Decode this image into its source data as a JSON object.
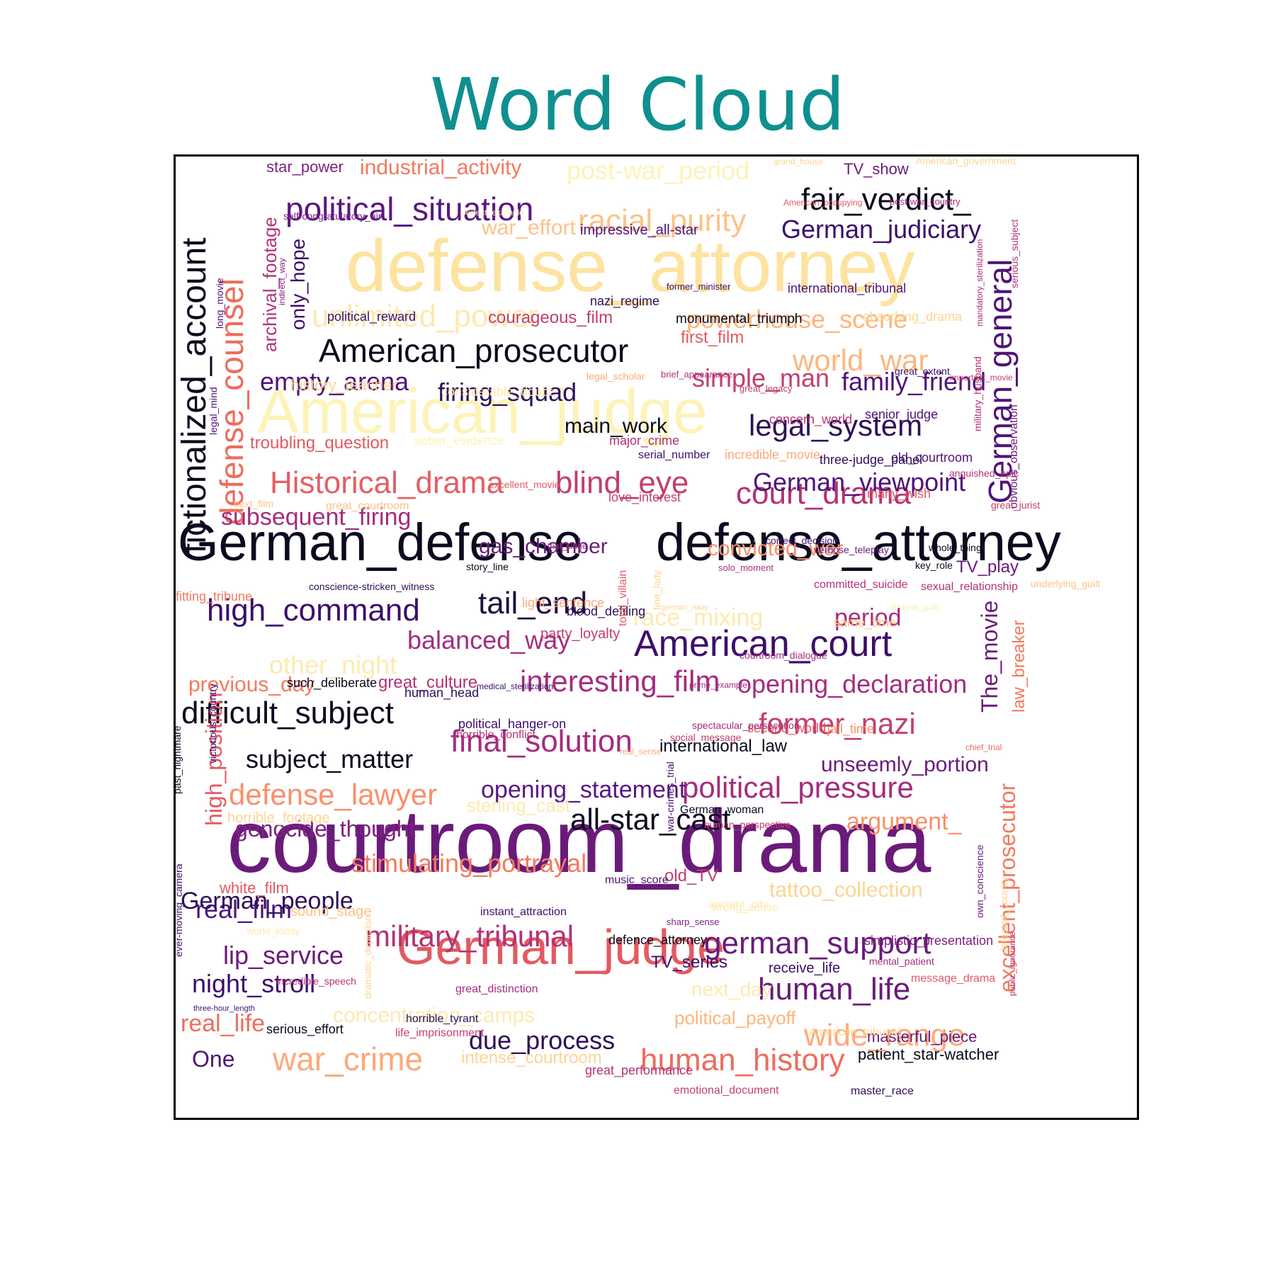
{
  "title": "Word Cloud",
  "chart_data": {
    "type": "wordcloud",
    "title": "Word Cloud",
    "colormap": "magma",
    "background": "#ffffff",
    "border": true,
    "words": [
      {
        "text": "courtroom_drama",
        "color": "#6a1b7a"
      },
      {
        "text": "defense_attorney",
        "color": "#fde3a0"
      },
      {
        "text": "American_judge",
        "color": "#fdf3b8"
      },
      {
        "text": "German_defense",
        "color": "#0b0a1e"
      },
      {
        "text": "defense_attorney",
        "color": "#0b0a1e"
      },
      {
        "text": "German_judge",
        "color": "#e35a61"
      },
      {
        "text": "fictionalized_account",
        "color": "#0b0a1e"
      },
      {
        "text": "defense_counsel",
        "color": "#ee6c5c"
      },
      {
        "text": "German_general",
        "color": "#4e1479"
      },
      {
        "text": "American_prosecutor",
        "color": "#0b0a1e"
      },
      {
        "text": "political_situation",
        "color": "#5a1781"
      },
      {
        "text": "fair_verdict_",
        "color": "#0b0a1e"
      },
      {
        "text": "racial_purity",
        "color": "#fdc287"
      },
      {
        "text": "unlimited_power",
        "color": "#fdeab0"
      },
      {
        "text": "Historical_drama",
        "color": "#e65e64"
      },
      {
        "text": "blind_eye",
        "color": "#c33e6f"
      },
      {
        "text": "court_drama",
        "color": "#b33274"
      },
      {
        "text": "American_court",
        "color": "#3c0f6b"
      },
      {
        "text": "high_command",
        "color": "#3c0f6b"
      },
      {
        "text": "tail_end",
        "color": "#1c1140"
      },
      {
        "text": "interesting_film",
        "color": "#a42c7f"
      },
      {
        "text": "difficult_subject",
        "color": "#0b0a1e"
      },
      {
        "text": "final_solution",
        "color": "#a42c7f"
      },
      {
        "text": "former_nazi",
        "color": "#c33e6f"
      },
      {
        "text": "political_pressure",
        "color": "#a42c7f"
      },
      {
        "text": "defense_lawyer",
        "color": "#fa8f6a"
      },
      {
        "text": "all-star_cast",
        "color": "#0b0a1e"
      },
      {
        "text": "military_tribunal",
        "color": "#b33274"
      },
      {
        "text": "german_support",
        "color": "#6a1b7a"
      },
      {
        "text": "human_life",
        "color": "#6a1b7a"
      },
      {
        "text": "wide_range",
        "color": "#fca97a"
      },
      {
        "text": "war_crime",
        "color": "#fca97a"
      },
      {
        "text": "human_history",
        "color": "#ee6c5c"
      },
      {
        "text": "legal_system",
        "color": "#2e1158"
      },
      {
        "text": "world_war",
        "color": "#fdb57d"
      },
      {
        "text": "powerhouse_scene",
        "color": "#fdb57d"
      },
      {
        "text": "German_judiciary",
        "color": "#3c0f6b"
      },
      {
        "text": "German_viewpoint",
        "color": "#4e1479"
      },
      {
        "text": "empty_arena",
        "color": "#4e1479"
      },
      {
        "text": "firing_squad",
        "color": "#2e1158"
      },
      {
        "text": "simple_man",
        "color": "#c33e6f"
      },
      {
        "text": "family_friend",
        "color": "#4e1479"
      },
      {
        "text": "subsequent_firing",
        "color": "#a42c7f"
      },
      {
        "text": "gas_chamber",
        "color": "#6a1b7a"
      },
      {
        "text": "convicted_war",
        "color": "#fa8f6a"
      },
      {
        "text": "opening_declaration",
        "color": "#a42c7f"
      },
      {
        "text": "opening_statement",
        "color": "#5a1781"
      },
      {
        "text": "unseemly_portion",
        "color": "#6a1b7a"
      },
      {
        "text": "subject_matter",
        "color": "#0b0a1e"
      },
      {
        "text": "genocide_thought",
        "color": "#7d2280"
      },
      {
        "text": "argument_",
        "color": "#fa8f6a"
      },
      {
        "text": "balanced_way",
        "color": "#a42c7f"
      },
      {
        "text": "stimulating_portrayal",
        "color": "#f27a5e"
      },
      {
        "text": "due_process",
        "color": "#2e1158"
      },
      {
        "text": "real_film",
        "color": "#4e1479"
      },
      {
        "text": "lip_service",
        "color": "#6a1b7a"
      },
      {
        "text": "night_stroll",
        "color": "#3c0f6b"
      },
      {
        "text": "German_people",
        "color": "#2e1158"
      },
      {
        "text": "real_life",
        "color": "#ee6c5c"
      },
      {
        "text": "One",
        "color": "#4e1479"
      },
      {
        "text": "period",
        "color": "#a42c7f"
      },
      {
        "text": "race_mixing",
        "color": "#fdeab0"
      },
      {
        "text": "other_night",
        "color": "#fdeab0"
      },
      {
        "text": "previous_day",
        "color": "#f27a5e"
      },
      {
        "text": "concentration_camps",
        "color": "#fdeab0"
      },
      {
        "text": "main_work",
        "color": "#0b0a1e"
      },
      {
        "text": "post-war_period",
        "color": "#fdf3b8"
      },
      {
        "text": "industrial_activity",
        "color": "#f27a5e"
      },
      {
        "text": "war_effort",
        "color": "#fdc287"
      },
      {
        "text": "star_power",
        "color": "#7d2280"
      },
      {
        "text": "TV_show",
        "color": "#6a1b7a"
      },
      {
        "text": "only_hope",
        "color": "#3c0f6b"
      },
      {
        "text": "archival_footage",
        "color": "#b33274"
      },
      {
        "text": "courageous_film",
        "color": "#c33e6f"
      },
      {
        "text": "first_film",
        "color": "#e35a61"
      },
      {
        "text": "troubling_question",
        "color": "#e35a61"
      },
      {
        "text": "history_teacher",
        "color": "#fdd494"
      },
      {
        "text": "high_position",
        "color": "#e35a61"
      },
      {
        "text": "excellent_prosecutor",
        "color": "#f27a5e"
      },
      {
        "text": "The_movie",
        "color": "#6a1b7a"
      },
      {
        "text": "law_breaker",
        "color": "#f27a5e"
      },
      {
        "text": "great_culture",
        "color": "#b33274"
      },
      {
        "text": "intense_courtroom",
        "color": "#fdd494"
      },
      {
        "text": "masterful_piece",
        "color": "#6a1b7a"
      },
      {
        "text": "patient_star-watcher",
        "color": "#0b0a1e"
      },
      {
        "text": "tattoo_collection",
        "color": "#fdd494"
      },
      {
        "text": "next_day",
        "color": "#fdeab0"
      },
      {
        "text": "political_payoff",
        "color": "#fdb57d"
      },
      {
        "text": "TV_play",
        "color": "#6a1b7a"
      },
      {
        "text": "old_TV",
        "color": "#c33e6f"
      },
      {
        "text": "TV_series",
        "color": "#3c0f6b"
      },
      {
        "text": "international_law",
        "color": "#0b0a1e"
      },
      {
        "text": "sterling_cast",
        "color": "#fdeab0"
      },
      {
        "text": "white_film",
        "color": "#e35a61"
      },
      {
        "text": "impressive_all-star",
        "color": "#4e1479"
      },
      {
        "text": "nazi_regime",
        "color": "#2e1158"
      },
      {
        "text": "monumental_triumph",
        "color": "#0b0a1e"
      },
      {
        "text": "international_tribunal",
        "color": "#4e1479"
      },
      {
        "text": "political_reward",
        "color": "#3c0f6b"
      },
      {
        "text": "absorbing_drama",
        "color": "#fdd494"
      },
      {
        "text": "considerable_doubt",
        "color": "#fdeab0"
      },
      {
        "text": "concern_world",
        "color": "#b33274"
      },
      {
        "text": "senior_judge",
        "color": "#4e1479"
      },
      {
        "text": "sober_evidence",
        "color": "#fdf3b8"
      },
      {
        "text": "major_crime",
        "color": "#b33274"
      },
      {
        "text": "serial_number",
        "color": "#3c0f6b"
      },
      {
        "text": "three-judge_panel",
        "color": "#2e1158"
      },
      {
        "text": "incredible_movie",
        "color": "#fca97a"
      },
      {
        "text": "old_courtroom",
        "color": "#4e1479"
      },
      {
        "text": "many_wish",
        "color": "#e35a61"
      },
      {
        "text": "love_interest",
        "color": "#c33e6f"
      },
      {
        "text": "correct_decision",
        "color": "#4e1479"
      },
      {
        "text": "whole_thing",
        "color": "#0b0a1e"
      },
      {
        "text": "verbose_teleplay",
        "color": "#6a1b7a"
      },
      {
        "text": "sexual_relationship",
        "color": "#b33274"
      },
      {
        "text": "fitting_tribune",
        "color": "#f27a5e"
      },
      {
        "text": "blood_defiling",
        "color": "#2e1158"
      },
      {
        "text": "story_line",
        "color": "#0b0a1e"
      },
      {
        "text": "committed_suicide",
        "color": "#b33274"
      },
      {
        "text": "key_role",
        "color": "#0b0a1e"
      },
      {
        "text": "light_sentence",
        "color": "#fca97a"
      },
      {
        "text": "party_loyalty",
        "color": "#c33e6f"
      },
      {
        "text": "same_time",
        "color": "#fdc287"
      },
      {
        "text": "such_deliberate",
        "color": "#0b0a1e"
      },
      {
        "text": "human_head",
        "color": "#2e1158"
      },
      {
        "text": "political_hanger-on",
        "color": "#3c0f6b"
      },
      {
        "text": "second_world",
        "color": "#e35a61"
      },
      {
        "text": "jail_time",
        "color": "#fa8f6a"
      },
      {
        "text": "horrible_conflict",
        "color": "#b33274"
      },
      {
        "text": "horrible_footage",
        "color": "#fdd494"
      },
      {
        "text": "sound_stage",
        "color": "#fdc287"
      },
      {
        "text": "instant_attraction",
        "color": "#3c0f6b"
      },
      {
        "text": "German_woman",
        "color": "#0b0a1e"
      },
      {
        "text": "music_score",
        "color": "#4e1479"
      },
      {
        "text": "ancient_city",
        "color": "#fdeab0"
      },
      {
        "text": "defence_attorney",
        "color": "#0b0a1e"
      },
      {
        "text": "simplistic_presentation",
        "color": "#7d2280"
      },
      {
        "text": "receive_life",
        "color": "#3c0f6b"
      },
      {
        "text": "great_distinction",
        "color": "#a42c7f"
      },
      {
        "text": "life_imprisonment",
        "color": "#c33e6f"
      },
      {
        "text": "horrible_tyrant",
        "color": "#2e1158"
      },
      {
        "text": "serious_effort",
        "color": "#0b0a1e"
      },
      {
        "text": "American_tribunal",
        "color": "#fdd494"
      },
      {
        "text": "emotional_document",
        "color": "#c33e6f"
      },
      {
        "text": "master_race",
        "color": "#2e1158"
      },
      {
        "text": "great_performance",
        "color": "#b33274"
      },
      {
        "text": "self-congratulatory_air",
        "color": "#7d2280"
      },
      {
        "text": "long_movie",
        "color": "#4e1479"
      },
      {
        "text": "indirect_way",
        "color": "#7d2280"
      },
      {
        "text": "legal_mind",
        "color": "#4e1479"
      },
      {
        "text": "total_villain",
        "color": "#e35a61"
      },
      {
        "text": "fine_lady",
        "color": "#fdd494"
      },
      {
        "text": "war-crimes_trial",
        "color": "#3c0f6b"
      },
      {
        "text": "dramatic_depiction",
        "color": "#fdd494"
      },
      {
        "text": "military_husband",
        "color": "#b33274"
      },
      {
        "text": "obvious_observation",
        "color": "#6a1b7a"
      },
      {
        "text": "mandatory_sterilization",
        "color": "#a42c7f"
      },
      {
        "text": "serious_subject",
        "color": "#b33274"
      },
      {
        "text": "past_nightmare",
        "color": "#0b0a1e"
      },
      {
        "text": "victorious_country",
        "color": "#3c0f6b"
      },
      {
        "text": "ever-moving_camera",
        "color": "#3c0f6b"
      },
      {
        "text": "own_conscience",
        "color": "#6a1b7a"
      },
      {
        "text": "defeated_country",
        "color": "#fdd494"
      },
      {
        "text": "public_ignorance",
        "color": "#b33274"
      },
      {
        "text": "grand_house",
        "color": "#fdd494"
      },
      {
        "text": "American_government",
        "color": "#fdd494"
      },
      {
        "text": "American_occupying",
        "color": "#e35a61"
      },
      {
        "text": "post-war_country",
        "color": "#a42c7f"
      },
      {
        "text": "perfect_example",
        "color": "#fdf3b8"
      },
      {
        "text": "former_minister",
        "color": "#3c0f6b"
      },
      {
        "text": "legal_scholar",
        "color": "#fca97a"
      },
      {
        "text": "brief_appearance",
        "color": "#b33274"
      },
      {
        "text": "great_extent",
        "color": "#3c0f6b"
      },
      {
        "text": "important_movie",
        "color": "#c33e6f"
      },
      {
        "text": "great_legacy",
        "color": "#c33e6f"
      },
      {
        "text": "excellent_movie",
        "color": "#e35a61"
      },
      {
        "text": "next_film",
        "color": "#fdc287"
      },
      {
        "text": "great_courtroom",
        "color": "#fdc287"
      },
      {
        "text": "anguished_epic",
        "color": "#b33274"
      },
      {
        "text": "great_jurist",
        "color": "#c33e6f"
      },
      {
        "text": "trial_judge",
        "color": "#a42c7f"
      },
      {
        "text": "solo_moment",
        "color": "#b33274"
      },
      {
        "text": "conscience-stricken_witness",
        "color": "#2e1158"
      },
      {
        "text": "underlying_guilt",
        "color": "#fdc287"
      },
      {
        "text": "german_navy",
        "color": "#fdd494"
      },
      {
        "text": "obvious_guilt",
        "color": "#fdeab0"
      },
      {
        "text": "courtroom_dialogue",
        "color": "#a42c7f"
      },
      {
        "text": "medical_sterilization",
        "color": "#3c0f6b"
      },
      {
        "text": "prime_example",
        "color": "#a42c7f"
      },
      {
        "text": "spectacular_persecution",
        "color": "#a42c7f"
      },
      {
        "text": "social_message",
        "color": "#c33e6f"
      },
      {
        "text": "real_sense",
        "color": "#fca97a"
      },
      {
        "text": "chief_trial",
        "color": "#ee6c5c"
      },
      {
        "text": "human_perspective",
        "color": "#c33e6f"
      },
      {
        "text": "strong_sense",
        "color": "#fdeab0"
      },
      {
        "text": "world_today",
        "color": "#fdeab0"
      },
      {
        "text": "sharp_sense",
        "color": "#7d2280"
      },
      {
        "text": "mental_patient",
        "color": "#a42c7f"
      },
      {
        "text": "message_drama",
        "color": "#e35a61"
      },
      {
        "text": "incredible_speech",
        "color": "#b33274"
      },
      {
        "text": "three-hour_length",
        "color": "#3c0f6b"
      }
    ]
  }
}
